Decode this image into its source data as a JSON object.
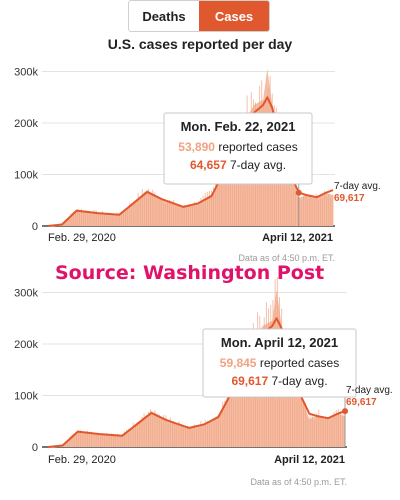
{
  "toggle": {
    "deaths_label": "Deaths",
    "cases_label": "Cases",
    "active": "Cases"
  },
  "colors": {
    "accent": "#e0582d",
    "area_fill": "#f5bda3",
    "bar_line": "#f0a283",
    "grid": "#e3e3e3",
    "source_text": "#e0126a",
    "muted_text": "#9a9a9a"
  },
  "title": "U.S. cases reported per day",
  "source_caption": "Source: Washington Post",
  "data_note": "Data as of 4:50 p.m. ET.",
  "chart_data": [
    {
      "type": "area",
      "title": "U.S. cases reported per day",
      "y_ticks": [
        "0",
        "100k",
        "200k",
        "300k"
      ],
      "ylim": [
        0,
        310000
      ],
      "x_start_label": "Feb. 29, 2020",
      "x_end_label": "April 12, 2021",
      "grid": true,
      "series": [
        {
          "name": "reported cases",
          "x": [
            "Feb. 29, 2020",
            "Mar. 20, 2020",
            "Apr. 10, 2020",
            "May 10, 2020",
            "June 10, 2020",
            "July 1, 2020",
            "July 20, 2020",
            "Aug. 10, 2020",
            "Sept. 10, 2020",
            "Oct. 1, 2020",
            "Oct. 20, 2020",
            "Nov. 5, 2020",
            "Nov. 20, 2020",
            "Dec. 5, 2020",
            "Dec. 20, 2020",
            "Jan. 2, 2021",
            "Jan. 8, 2021",
            "Jan. 15, 2021",
            "Jan. 25, 2021",
            "Feb. 5, 2021",
            "Feb. 22, 2021",
            "Mar. 5, 2021",
            "Mar. 20, 2021",
            "Apr. 1, 2021",
            "April 12, 2021"
          ],
          "values": [
            0,
            5000,
            32000,
            25000,
            22000,
            48000,
            70000,
            52000,
            36000,
            45000,
            62000,
            105000,
            170000,
            200000,
            235000,
            245000,
            305000,
            235000,
            175000,
            120000,
            53890,
            62000,
            55000,
            65000,
            59845
          ]
        },
        {
          "name": "7-day avg.",
          "x": [
            "Feb. 29, 2020",
            "Mar. 20, 2020",
            "Apr. 10, 2020",
            "May 10, 2020",
            "June 10, 2020",
            "July 1, 2020",
            "July 20, 2020",
            "Aug. 10, 2020",
            "Sept. 10, 2020",
            "Oct. 1, 2020",
            "Oct. 20, 2020",
            "Nov. 5, 2020",
            "Nov. 20, 2020",
            "Dec. 5, 2020",
            "Dec. 20, 2020",
            "Jan. 2, 2021",
            "Jan. 8, 2021",
            "Jan. 15, 2021",
            "Jan. 25, 2021",
            "Feb. 5, 2021",
            "Feb. 22, 2021",
            "Mar. 5, 2021",
            "Mar. 20, 2021",
            "Apr. 1, 2021",
            "April 12, 2021"
          ],
          "values": [
            0,
            3000,
            30000,
            25000,
            22000,
            45000,
            66000,
            52000,
            37000,
            44000,
            58000,
            100000,
            165000,
            195000,
            220000,
            235000,
            250000,
            230000,
            170000,
            115000,
            64657,
            60000,
            56000,
            64000,
            69617
          ]
        }
      ],
      "tooltip": {
        "date": "Mon. Feb. 22, 2021",
        "reported": "53,890",
        "reported_label": "reported cases",
        "avg": "64,657",
        "avg_label": "7-day avg."
      },
      "end_label": {
        "label": "7-day avg.",
        "value": "69,617"
      }
    },
    {
      "type": "area",
      "y_ticks": [
        "0",
        "100k",
        "200k",
        "300k"
      ],
      "ylim": [
        0,
        310000
      ],
      "x_start_label": "Feb. 29, 2020",
      "x_end_label": "April 12, 2021",
      "grid": true,
      "tooltip": {
        "date": "Mon. April 12, 2021",
        "reported": "59,845",
        "reported_label": "reported cases",
        "avg": "69,617",
        "avg_label": "7-day avg."
      },
      "end_label": {
        "label": "7-day avg.",
        "value": "69,617"
      }
    }
  ]
}
